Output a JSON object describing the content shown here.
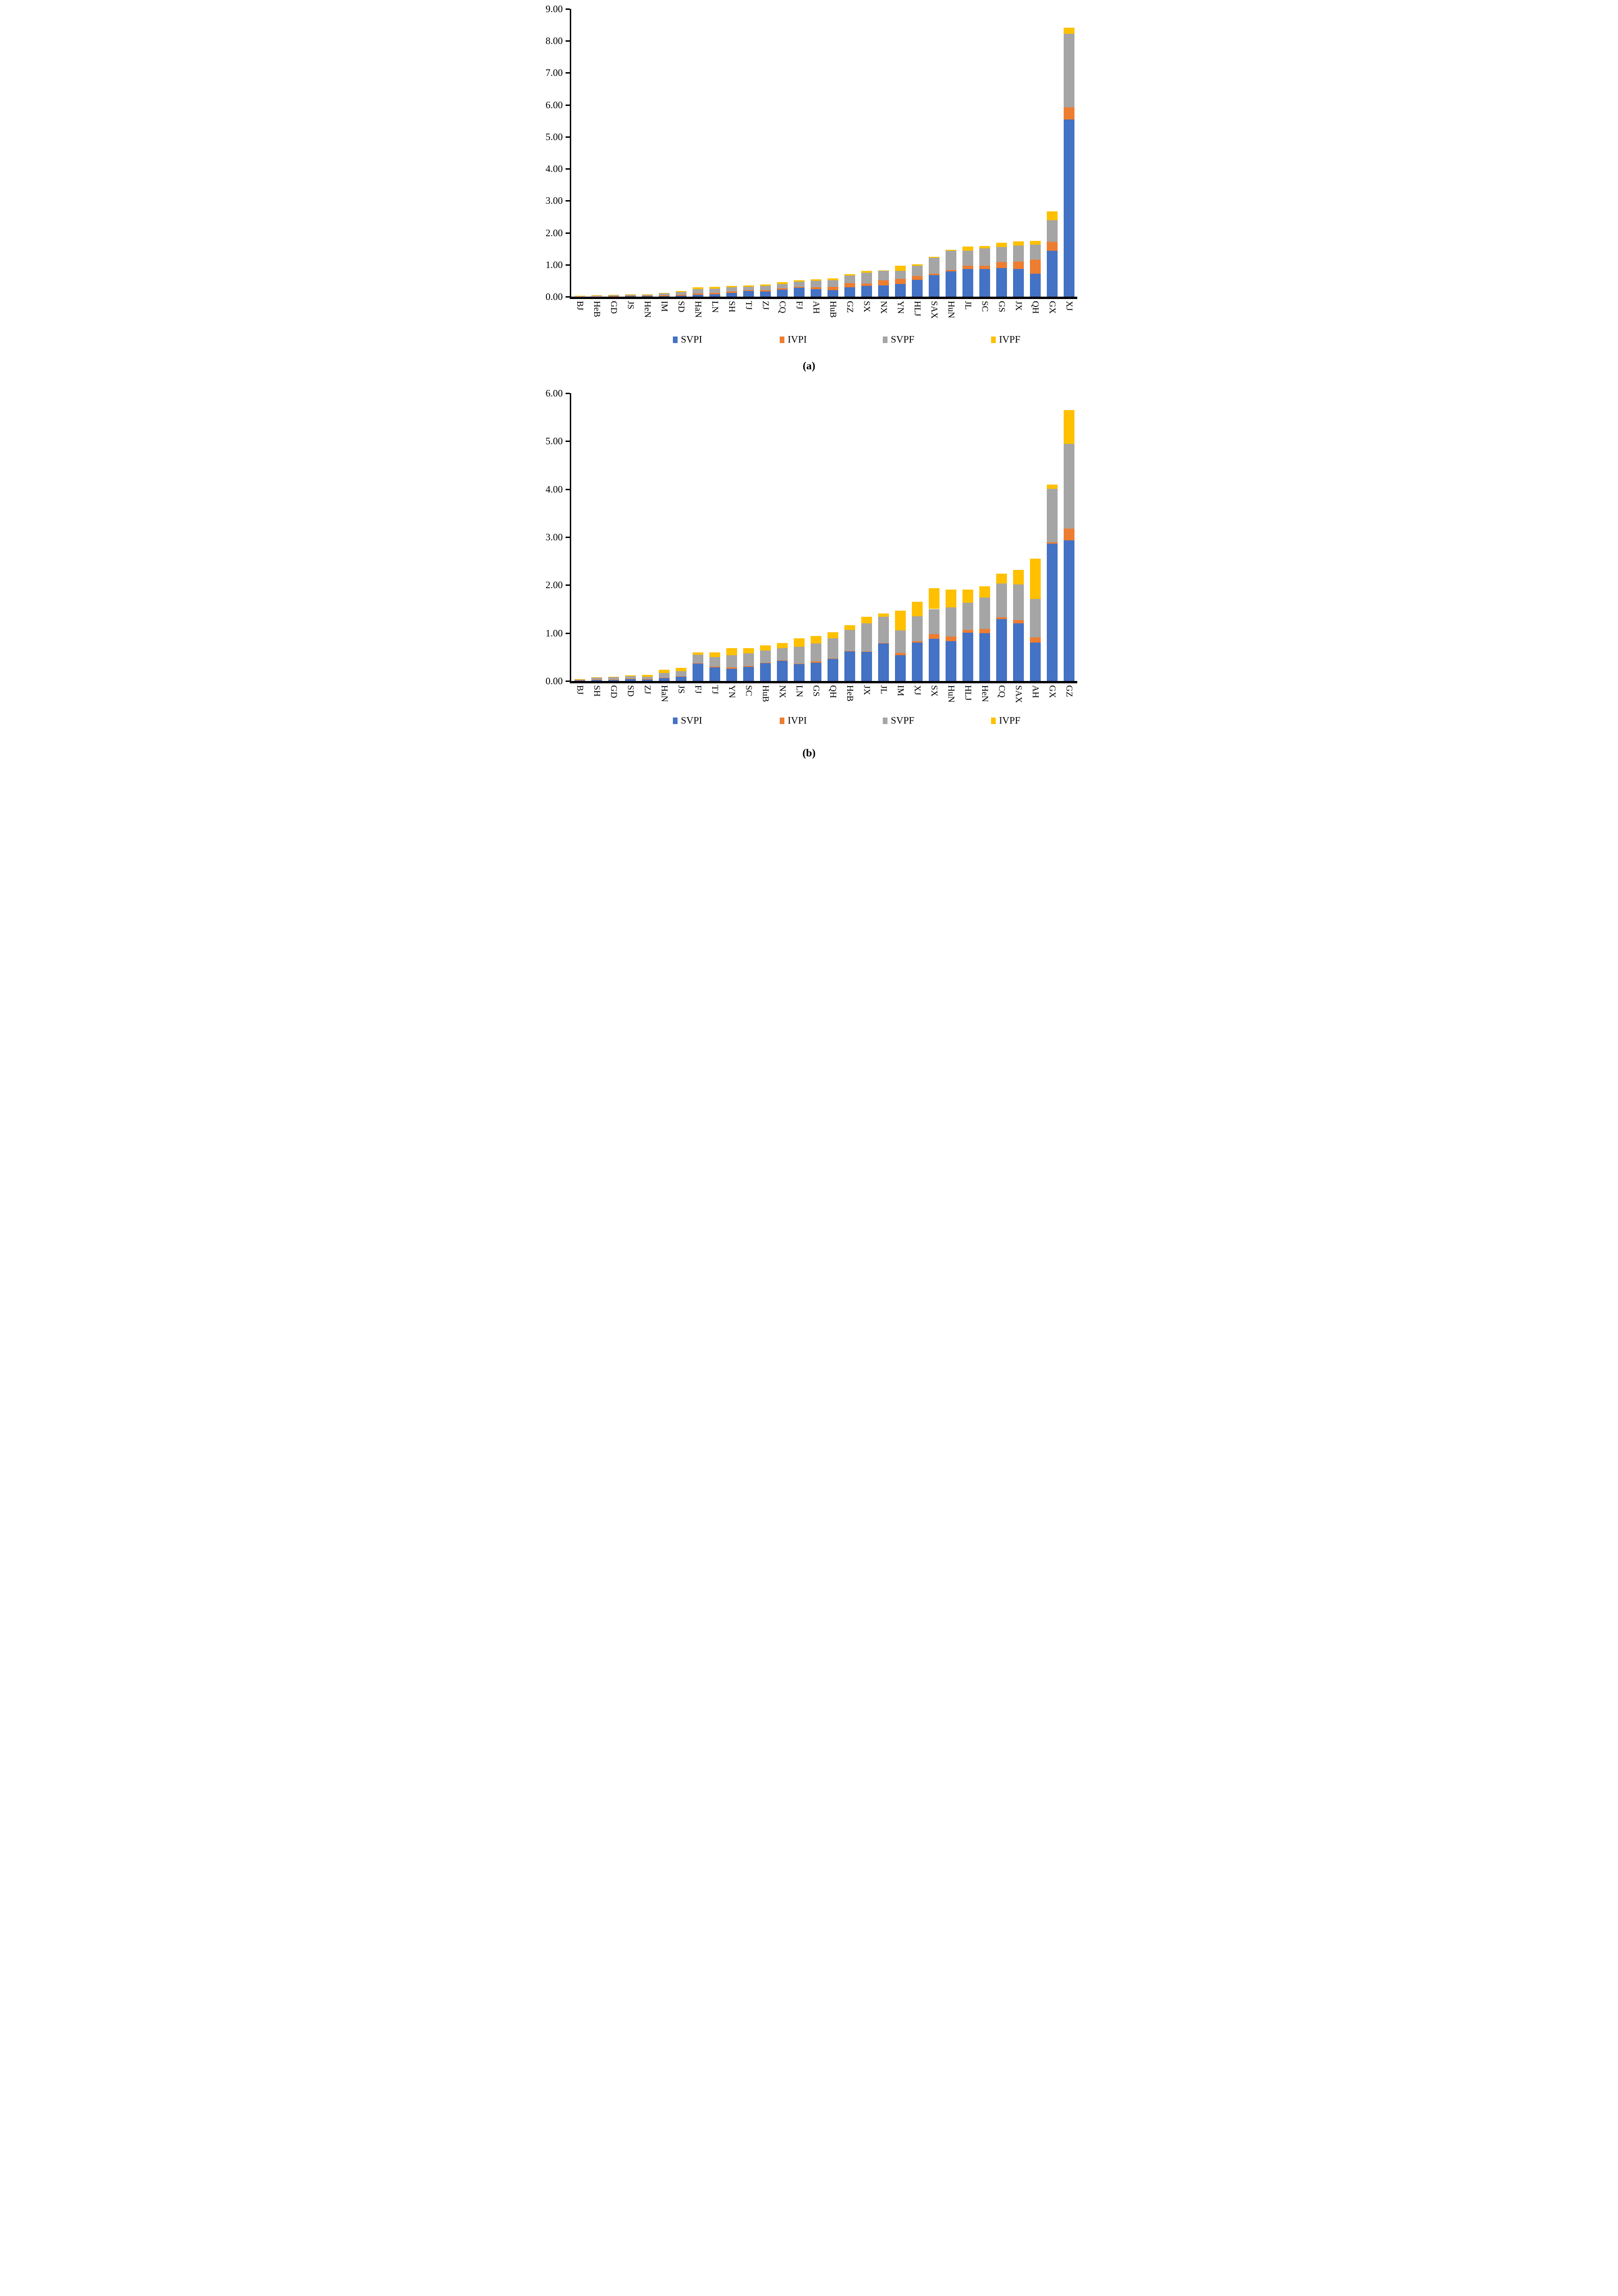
{
  "page": {
    "background": "#ffffff"
  },
  "captions": {
    "a": "(a)",
    "b": "(b)"
  },
  "legend_labels": [
    "SVPI",
    "IVPI",
    "SVPF",
    "IVPF"
  ],
  "series_colors": {
    "SVPI": "#4472C4",
    "IVPI": "#ED7D31",
    "SVPF": "#A5A5A5",
    "IVPF": "#FFC000"
  },
  "chart_data": [
    {
      "type": "bar",
      "stacked": true,
      "caption": "(a)",
      "xlabel": "",
      "ylabel": "",
      "ylim": [
        0,
        9
      ],
      "ytick_labels": [
        "0.00",
        "1.00",
        "2.00",
        "3.00",
        "4.00",
        "5.00",
        "6.00",
        "7.00",
        "8.00",
        "9.00"
      ],
      "grid": false,
      "legend_position": "bottom",
      "categories": [
        "BJ",
        "HeB",
        "GD",
        "JS",
        "HeN",
        "IM",
        "SD",
        "HaN",
        "LN",
        "SH",
        "TJ",
        "ZJ",
        "CQ",
        "FJ",
        "AH",
        "HuB",
        "GZ",
        "SX",
        "NX",
        "YN",
        "HLJ",
        "SAX",
        "HuN",
        "JL",
        "SC",
        "GS",
        "JX",
        "QH",
        "GX",
        "XJ"
      ],
      "series": [
        {
          "name": "SVPI",
          "color": "#4472C4",
          "values": [
            0.005,
            0.005,
            0.008,
            0.012,
            0.013,
            0.016,
            0.035,
            0.06,
            0.08,
            0.12,
            0.17,
            0.155,
            0.22,
            0.28,
            0.235,
            0.21,
            0.29,
            0.34,
            0.345,
            0.39,
            0.53,
            0.68,
            0.79,
            0.87,
            0.86,
            0.89,
            0.86,
            0.72,
            1.44,
            5.54
          ]
        },
        {
          "name": "IVPI",
          "color": "#ED7D31",
          "values": [
            0.01,
            0.012,
            0.013,
            0.018,
            0.02,
            0.028,
            0.025,
            0.04,
            0.04,
            0.04,
            0.04,
            0.045,
            0.04,
            0.03,
            0.065,
            0.1,
            0.13,
            0.07,
            0.165,
            0.17,
            0.11,
            0.04,
            0.05,
            0.1,
            0.11,
            0.19,
            0.24,
            0.44,
            0.28,
            0.38
          ]
        },
        {
          "name": "SVPF",
          "color": "#A5A5A5",
          "values": [
            0.012,
            0.028,
            0.033,
            0.033,
            0.034,
            0.059,
            0.09,
            0.14,
            0.13,
            0.14,
            0.1,
            0.13,
            0.14,
            0.16,
            0.195,
            0.2,
            0.24,
            0.34,
            0.3,
            0.25,
            0.33,
            0.5,
            0.6,
            0.47,
            0.54,
            0.47,
            0.5,
            0.47,
            0.67,
            2.31
          ]
        },
        {
          "name": "IVPF",
          "color": "#FFC000",
          "values": [
            0.006,
            0.005,
            0.007,
            0.007,
            0.008,
            0.016,
            0.02,
            0.05,
            0.06,
            0.04,
            0.04,
            0.05,
            0.05,
            0.05,
            0.045,
            0.06,
            0.05,
            0.05,
            0.01,
            0.16,
            0.04,
            0.03,
            0.02,
            0.13,
            0.08,
            0.14,
            0.13,
            0.12,
            0.28,
            0.18
          ]
        }
      ]
    },
    {
      "type": "bar",
      "stacked": true,
      "caption": "(b)",
      "xlabel": "",
      "ylabel": "",
      "ylim": [
        0,
        6
      ],
      "ytick_labels": [
        "0.00",
        "1.00",
        "2.00",
        "3.00",
        "4.00",
        "5.00",
        "6.00"
      ],
      "grid": false,
      "legend_position": "bottom",
      "categories": [
        "BJ",
        "SH",
        "GD",
        "SD",
        "ZJ",
        "HaN",
        "JS",
        "FJ",
        "TJ",
        "YN",
        "SC",
        "HuB",
        "NX",
        "LN",
        "GS",
        "QH",
        "HeB",
        "JX",
        "JL",
        "IM",
        "XJ",
        "SX",
        "HuN",
        "HLJ",
        "HeN",
        "CQ",
        "SAX",
        "AH",
        "GX",
        "GZ"
      ],
      "series": [
        {
          "name": "SVPI",
          "color": "#4472C4",
          "values": [
            0.01,
            0.025,
            0.02,
            0.04,
            0.03,
            0.06,
            0.09,
            0.36,
            0.28,
            0.25,
            0.29,
            0.37,
            0.42,
            0.35,
            0.38,
            0.46,
            0.62,
            0.61,
            0.78,
            0.54,
            0.8,
            0.88,
            0.83,
            1.01,
            1.0,
            1.29,
            1.2,
            0.8,
            2.86,
            2.93
          ]
        },
        {
          "name": "IVPI",
          "color": "#ED7D31",
          "values": [
            0.005,
            0.005,
            0.005,
            0.005,
            0.005,
            0.01,
            0.01,
            0.01,
            0.02,
            0.03,
            0.02,
            0.01,
            0.01,
            0.01,
            0.03,
            0.01,
            0.01,
            0.01,
            0.01,
            0.05,
            0.03,
            0.1,
            0.1,
            0.06,
            0.08,
            0.04,
            0.07,
            0.11,
            0.03,
            0.25
          ]
        },
        {
          "name": "SVPF",
          "color": "#A5A5A5",
          "values": [
            0.01,
            0.04,
            0.05,
            0.055,
            0.055,
            0.1,
            0.11,
            0.18,
            0.2,
            0.26,
            0.27,
            0.26,
            0.25,
            0.35,
            0.37,
            0.42,
            0.44,
            0.58,
            0.55,
            0.47,
            0.52,
            0.52,
            0.6,
            0.56,
            0.66,
            0.7,
            0.74,
            0.8,
            1.12,
            1.76
          ]
        },
        {
          "name": "IVPF",
          "color": "#FFC000",
          "values": [
            0.01,
            0.005,
            0.01,
            0.015,
            0.04,
            0.065,
            0.06,
            0.05,
            0.1,
            0.14,
            0.1,
            0.1,
            0.11,
            0.18,
            0.16,
            0.13,
            0.09,
            0.14,
            0.07,
            0.41,
            0.3,
            0.43,
            0.38,
            0.28,
            0.23,
            0.21,
            0.31,
            0.84,
            0.08,
            0.71
          ]
        }
      ]
    }
  ]
}
